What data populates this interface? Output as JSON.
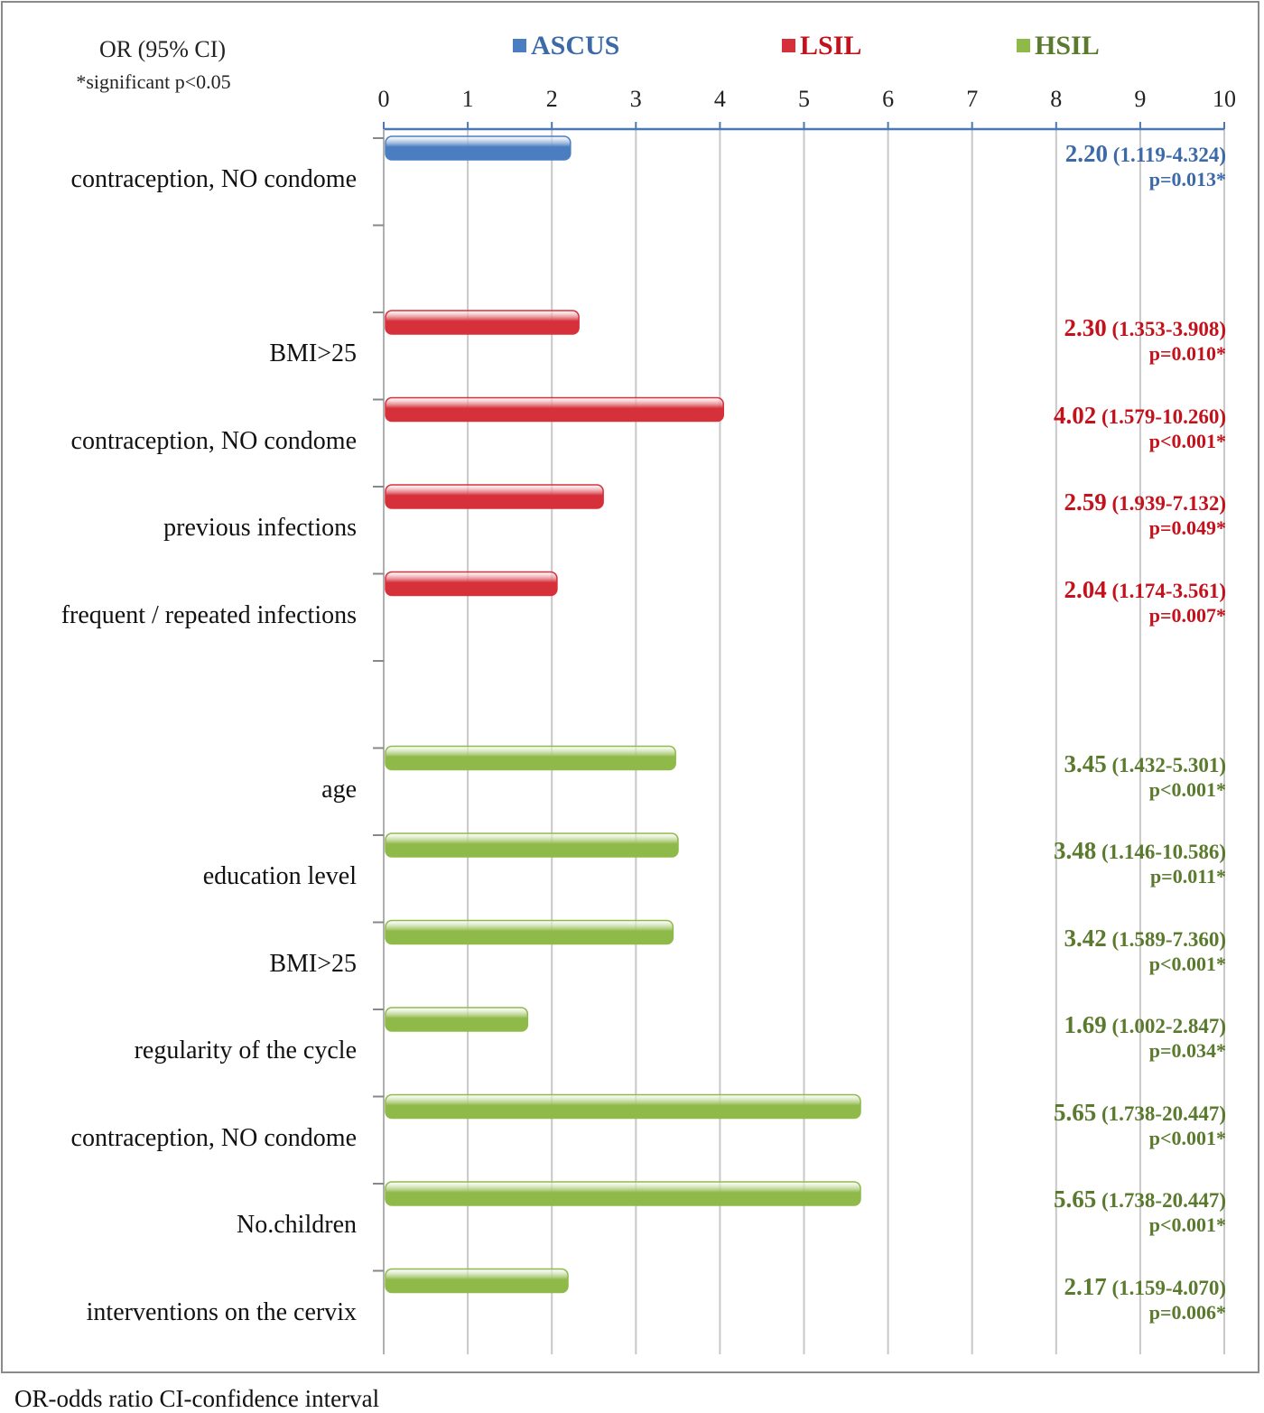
{
  "header": {
    "or_title": "OR (95% CI)",
    "significance_note": "*significant p<0.05"
  },
  "footer": "OR-odds ratio  CI-confidence interval",
  "colors": {
    "ASCUS": "#4a7ec0",
    "LSIL": "#d6303a",
    "HSIL": "#8fba4a",
    "ASCUS_text": "#3c6aa8",
    "LSIL_text": "#c4121c",
    "HSIL_text": "#5a7a2e",
    "grid": "#c8c8c8",
    "axis": "#4a78b4"
  },
  "chart_data": {
    "type": "bar",
    "orientation": "horizontal",
    "xlim": [
      0,
      10
    ],
    "xticks": [
      "0",
      "1",
      "2",
      "3",
      "4",
      "5",
      "6",
      "7",
      "8",
      "9",
      "10"
    ],
    "legend": [
      {
        "name": "ASCUS"
      },
      {
        "name": "LSIL"
      },
      {
        "name": "HSIL"
      }
    ],
    "bars": [
      {
        "group": "ASCUS",
        "label": "contraception, NO condome",
        "value": 2.2,
        "or": "2.20",
        "ci": "(1.119-4.324)",
        "p": "p=0.013*"
      },
      {
        "group": "LSIL",
        "label": "BMI>25",
        "value": 2.3,
        "or": "2.30",
        "ci": "(1.353-3.908)",
        "p": "p=0.010*"
      },
      {
        "group": "LSIL",
        "label": "contraception, NO condome",
        "value": 4.02,
        "or": "4.02",
        "ci": "(1.579-10.260)",
        "p": "p<0.001*"
      },
      {
        "group": "LSIL",
        "label": "previous infections",
        "value": 2.59,
        "or": "2.59",
        "ci": "(1.939-7.132)",
        "p": "p=0.049*"
      },
      {
        "group": "LSIL",
        "label": "frequent / repeated infections",
        "value": 2.04,
        "or": "2.04",
        "ci": "(1.174-3.561)",
        "p": "p=0.007*"
      },
      {
        "group": "HSIL",
        "label": "age",
        "value": 3.45,
        "or": "3.45",
        "ci": "(1.432-5.301)",
        "p": "p<0.001*"
      },
      {
        "group": "HSIL",
        "label": "education level",
        "value": 3.48,
        "or": "3.48",
        "ci": "(1.146-10.586)",
        "p": "p=0.011*"
      },
      {
        "group": "HSIL",
        "label": "BMI>25",
        "value": 3.42,
        "or": "3.42",
        "ci": "(1.589-7.360)",
        "p": "p<0.001*"
      },
      {
        "group": "HSIL",
        "label": "regularity of the cycle",
        "value": 1.69,
        "or": "1.69",
        "ci": "(1.002-2.847)",
        "p": "p=0.034*"
      },
      {
        "group": "HSIL",
        "label": "contraception, NO condome",
        "value": 5.65,
        "or": "5.65",
        "ci": "(1.738-20.447)",
        "p": "p<0.001*"
      },
      {
        "group": "HSIL",
        "label": "No.children",
        "value": 5.65,
        "or": "5.65",
        "ci": "(1.738-20.447)",
        "p": "p<0.001*"
      },
      {
        "group": "HSIL",
        "label": "interventions on the cervix",
        "value": 2.17,
        "or": "2.17",
        "ci": "(1.159-4.070)",
        "p": "p=0.006*"
      }
    ]
  }
}
